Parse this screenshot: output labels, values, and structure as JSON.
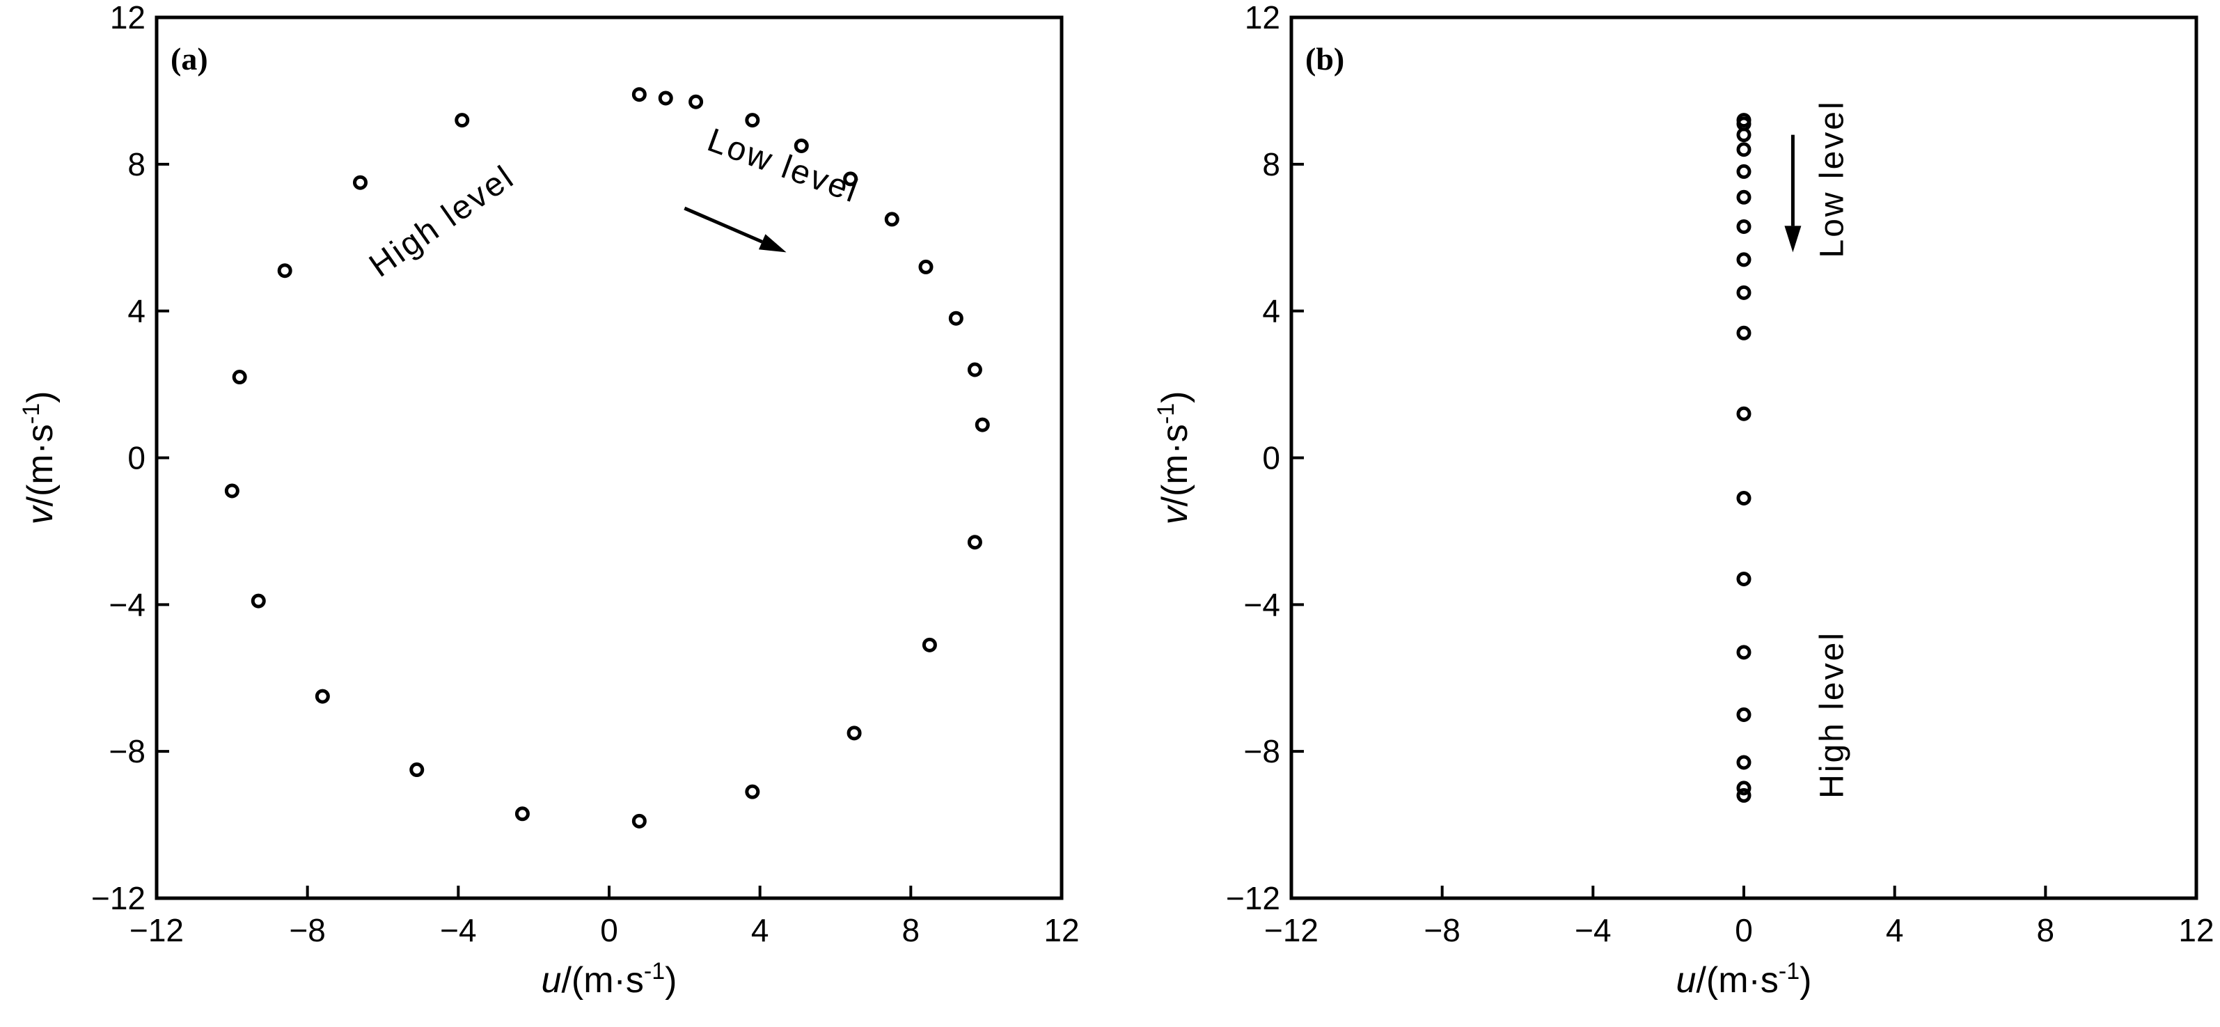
{
  "chart_data": [
    {
      "type": "scatter",
      "panel_label": "(a)",
      "xlabel_var": "u",
      "xlabel_unit": "/(m·s",
      "xlabel_exp": "-1",
      "xlabel_close": ")",
      "ylabel_var": "v",
      "ylabel_unit": "/(m·s",
      "ylabel_exp": "-1",
      "ylabel_close": ")",
      "xlim": [
        -12,
        12
      ],
      "ylim": [
        -12,
        12
      ],
      "xticks": [
        -12,
        -8,
        -4,
        0,
        4,
        8,
        12
      ],
      "yticks": [
        -12,
        -8,
        -4,
        0,
        4,
        8,
        12
      ],
      "xtick_labels": [
        "−12",
        "−8",
        "−4",
        "0",
        "4",
        "8",
        "12"
      ],
      "ytick_labels": [
        "−12",
        "−8",
        "−4",
        "0",
        "4",
        "8",
        "12"
      ],
      "grid": false,
      "marker": "open-circle",
      "annotations": [
        {
          "text": "Low level",
          "x": 4.6,
          "y": 7.9,
          "rotation": 20
        },
        {
          "text": "High level",
          "x": -4.4,
          "y": 6.4,
          "rotation": -35
        }
      ],
      "arrow": {
        "from": [
          2.0,
          6.8
        ],
        "to": [
          4.7,
          5.6
        ]
      },
      "points": [
        [
          0.8,
          9.9
        ],
        [
          1.5,
          9.8
        ],
        [
          2.3,
          9.7
        ],
        [
          3.8,
          9.2
        ],
        [
          5.1,
          8.5
        ],
        [
          6.4,
          7.6
        ],
        [
          7.5,
          6.5
        ],
        [
          8.4,
          5.2
        ],
        [
          9.2,
          3.8
        ],
        [
          9.7,
          2.4
        ],
        [
          9.9,
          0.9
        ],
        [
          9.7,
          -2.3
        ],
        [
          8.5,
          -5.1
        ],
        [
          6.5,
          -7.5
        ],
        [
          3.8,
          -9.1
        ],
        [
          0.8,
          -9.9
        ],
        [
          -2.3,
          -9.7
        ],
        [
          -5.1,
          -8.5
        ],
        [
          -7.6,
          -6.5
        ],
        [
          -9.3,
          -3.9
        ],
        [
          -10.0,
          -0.9
        ],
        [
          -9.8,
          2.2
        ],
        [
          -8.6,
          5.1
        ],
        [
          -6.6,
          7.5
        ],
        [
          -3.9,
          9.2
        ]
      ]
    },
    {
      "type": "scatter",
      "panel_label": "(b)",
      "xlabel_var": "u",
      "xlabel_unit": "/(m·s",
      "xlabel_exp": "-1",
      "xlabel_close": ")",
      "ylabel_var": "v",
      "ylabel_unit": "/(m·s",
      "ylabel_exp": "-1",
      "ylabel_close": ")",
      "xlim": [
        -12,
        12
      ],
      "ylim": [
        -12,
        12
      ],
      "xticks": [
        -12,
        -8,
        -4,
        0,
        4,
        8,
        12
      ],
      "yticks": [
        -12,
        -8,
        -4,
        0,
        4,
        8,
        12
      ],
      "xtick_labels": [
        "−12",
        "−8",
        "−4",
        "0",
        "4",
        "8",
        "12"
      ],
      "ytick_labels": [
        "−12",
        "−8",
        "−4",
        "0",
        "4",
        "8",
        "12"
      ],
      "grid": false,
      "marker": "open-circle",
      "annotations": [
        {
          "text": "Low level",
          "x": 2.4,
          "y": 7.6,
          "rotation": -90
        },
        {
          "text": "High level",
          "x": 2.4,
          "y": -7.0,
          "rotation": -90
        }
      ],
      "arrow": {
        "from": [
          1.3,
          8.8
        ],
        "to": [
          1.3,
          5.6
        ]
      },
      "points": [
        [
          0,
          9.2
        ],
        [
          0,
          9.1
        ],
        [
          0,
          8.8
        ],
        [
          0,
          8.4
        ],
        [
          0,
          7.8
        ],
        [
          0,
          7.1
        ],
        [
          0,
          6.3
        ],
        [
          0,
          5.4
        ],
        [
          0,
          4.5
        ],
        [
          0,
          3.4
        ],
        [
          0,
          1.2
        ],
        [
          0,
          -1.1
        ],
        [
          0,
          -3.3
        ],
        [
          0,
          -5.3
        ],
        [
          0,
          -7.0
        ],
        [
          0,
          -8.3
        ],
        [
          0,
          -9.0
        ],
        [
          0,
          -9.2
        ]
      ]
    }
  ]
}
